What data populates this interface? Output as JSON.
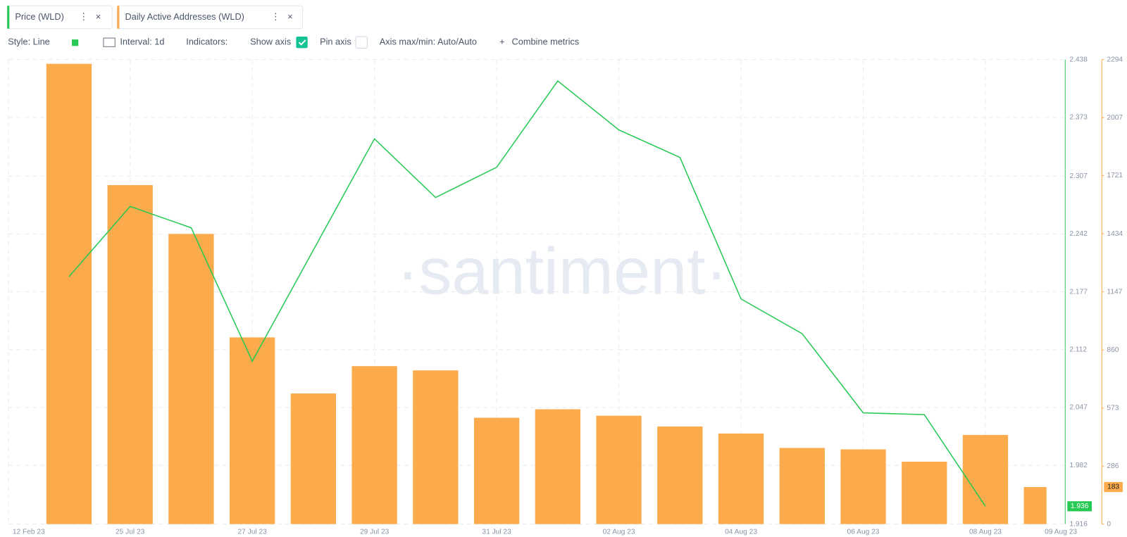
{
  "toolbar": {
    "tabs": [
      "Price (WLD)",
      "Daily Active Addresses (WLD)"
    ],
    "controls": [
      "Style: Line",
      "Interval: 1d",
      "Indicators:",
      "Show axis",
      "Pin axis",
      "Axis max/min: Auto/Auto",
      "Combine metrics"
    ]
  },
  "chart_data": {
    "type": "bar-line",
    "watermark": "·santiment·",
    "x_start_label": "12 Feb 23",
    "categories": [
      null,
      "25 Jul 23",
      null,
      "27 Jul 23",
      null,
      "29 Jul 23",
      null,
      "31 Jul 23",
      null,
      "02 Aug 23",
      null,
      "04 Aug 23",
      null,
      "06 Aug 23",
      null,
      "08 Aug 23",
      "09 Aug 23"
    ],
    "series": [
      {
        "name": "Price (WLD)",
        "type": "line",
        "color": "#26c953",
        "axis": "y",
        "values": [
          2.194,
          2.273,
          2.249,
          2.099,
          2.224,
          2.349,
          2.283,
          2.317,
          2.414,
          2.359,
          2.328,
          2.169,
          2.13,
          2.041,
          2.039,
          1.936,
          null
        ]
      },
      {
        "name": "Daily Active Addresses (WLD)",
        "type": "bar",
        "color": "#fbab4b",
        "axis": "y2",
        "values": [
          2273,
          1674,
          1433,
          922,
          645,
          780,
          759,
          525,
          567,
          535,
          482,
          447,
          376,
          369,
          308,
          440,
          183
        ]
      }
    ],
    "ylim": [
      1.916,
      2.438
    ],
    "yticks": [
      1.916,
      1.982,
      2.047,
      2.112,
      2.177,
      2.242,
      2.307,
      2.373,
      2.438
    ],
    "y2lim": [
      0,
      2294
    ],
    "y2ticks": [
      0,
      286,
      573,
      860,
      1147,
      1434,
      1721,
      2007,
      2294
    ],
    "grid": true
  }
}
